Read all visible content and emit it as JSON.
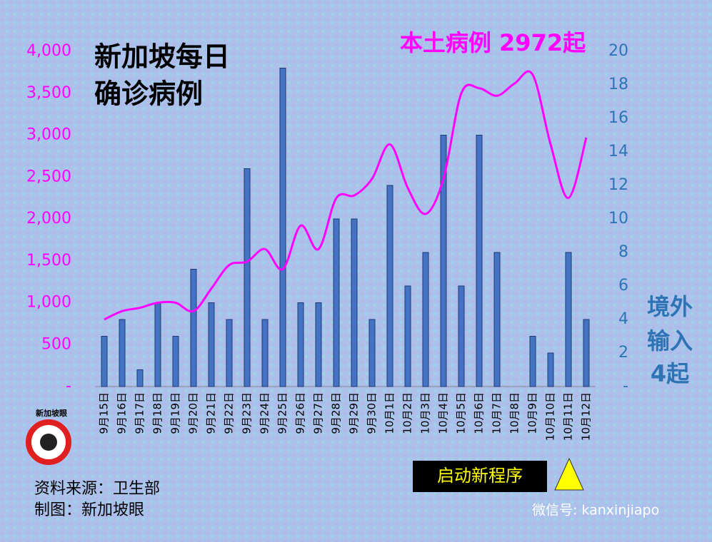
{
  "chart_data": {
    "type": "bar_line",
    "title": [
      "新加坡每日",
      "确诊病例"
    ],
    "categories": [
      "9月15日",
      "9月16日",
      "9月17日",
      "9月18日",
      "9月19日",
      "9月20日",
      "9月21日",
      "9月22日",
      "9月23日",
      "9月24日",
      "9月25日",
      "9月26日",
      "9月27日",
      "9月28日",
      "9月29日",
      "9月30日",
      "10月1日",
      "10月2日",
      "10月3日",
      "10月4日",
      "10月5日",
      "10月6日",
      "10月7日",
      "10月8日",
      "10月9日",
      "10月10日",
      "10月11日",
      "10月12日"
    ],
    "series": [
      {
        "type": "bar",
        "axis": "y2",
        "color": "#4472c4",
        "values": [
          3,
          4,
          1,
          5,
          3,
          7,
          5,
          4,
          13,
          4,
          19,
          5,
          5,
          10,
          10,
          4,
          12,
          6,
          8,
          15,
          6,
          15,
          8,
          0,
          3,
          2,
          8,
          4
        ]
      },
      {
        "type": "line",
        "color": "#ff00ff",
        "values": [
          800,
          900,
          940,
          1000,
          1000,
          900,
          1170,
          1450,
          1490,
          1640,
          1400,
          1920,
          1640,
          2250,
          2280,
          2480,
          2890,
          2370,
          2060,
          2480,
          3500,
          3560,
          3470,
          3620,
          3720,
          2890,
          2250,
          2972
        ]
      }
    ],
    "ylim": [
      0,
      4000
    ],
    "yticks": [
      {
        "value": 0,
        "label": "-"
      },
      500,
      {
        "value": 1000,
        "label": "1,000"
      },
      {
        "value": 1500,
        "label": "1,500"
      },
      {
        "value": 2000,
        "label": "2,000"
      },
      {
        "value": 2500,
        "label": "2,500"
      },
      {
        "value": 3000,
        "label": "3,000"
      },
      {
        "value": 3500,
        "label": "3,500"
      },
      {
        "value": 4000,
        "label": "4,000"
      }
    ],
    "y2lim": [
      0,
      20
    ],
    "y2ticks": [
      {
        "value": 0,
        "label": "-"
      },
      2,
      4,
      6,
      8,
      10,
      12,
      14,
      16,
      18,
      20
    ],
    "annotations": {
      "local": "本土病例 2972起",
      "imported": [
        "境外",
        "输入",
        "4起"
      ],
      "event": "启动新程序"
    },
    "logo": "新加坡眼",
    "source": "资料来源：卫生部",
    "credit": "制图：新加坡眼",
    "watermark": "微信号: kanxinjiapo"
  }
}
